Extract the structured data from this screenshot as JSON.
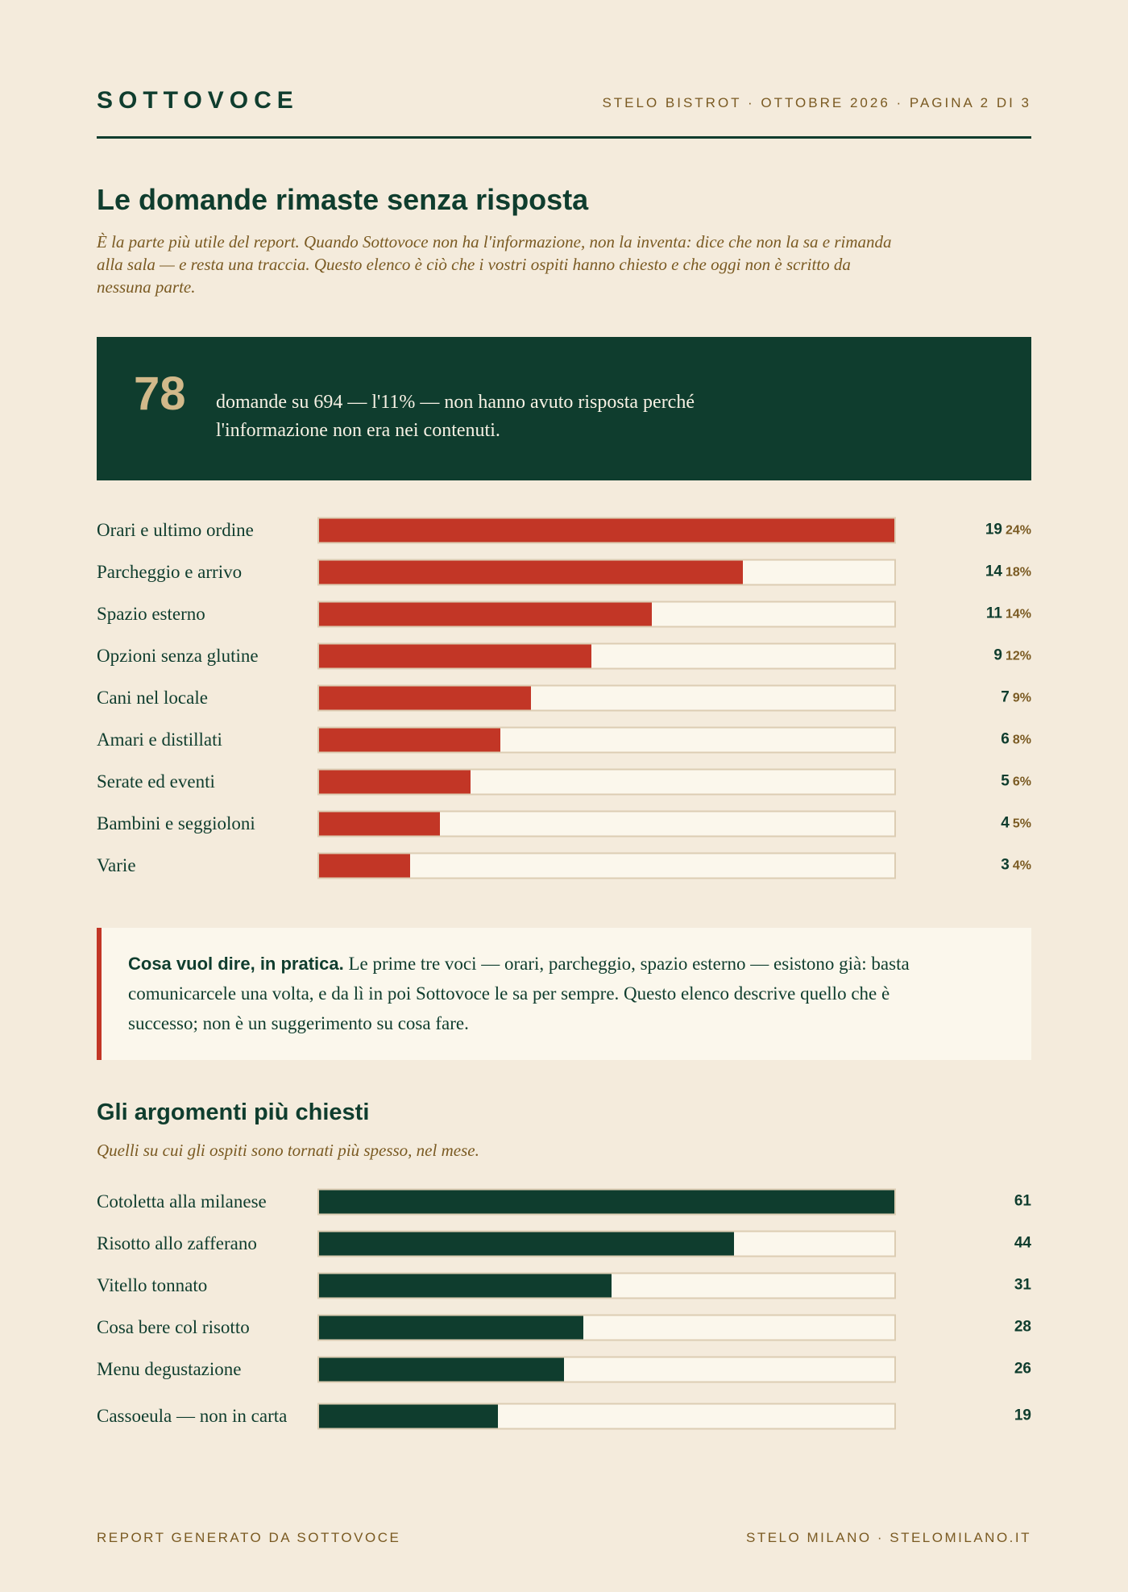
{
  "header": {
    "brand": "SOTTOVOCE",
    "meta": "STELO BISTROT · OTTOBRE 2026 · PAGINA 2 DI 3"
  },
  "section_unanswered": {
    "title": "Le domande rimaste senza risposta",
    "intro": "È la parte più utile del report. Quando Sottovoce non ha l'informazione, non la inventa: dice che non la sa e rimanda alla sala — e resta una traccia. Questo elenco è ciò che i vostri ospiti hanno chiesto e che oggi non è scritto da nessuna parte.",
    "stat": {
      "number": "78",
      "text": "domande su 694 — l'11% — non hanno avuto risposta perché l'informazione non era nei contenuti."
    },
    "items": [
      {
        "label": "Orari e ultimo ordine",
        "count": "19",
        "percent": "24%",
        "value": 19
      },
      {
        "label": "Parcheggio e arrivo",
        "count": "14",
        "percent": "18%",
        "value": 14
      },
      {
        "label": "Spazio esterno",
        "count": "11",
        "percent": "14%",
        "value": 11
      },
      {
        "label": "Opzioni senza glutine",
        "count": "9",
        "percent": "12%",
        "value": 9
      },
      {
        "label": "Cani nel locale",
        "count": "7",
        "percent": "9%",
        "value": 7
      },
      {
        "label": "Amari e distillati",
        "count": "6",
        "percent": "8%",
        "value": 6
      },
      {
        "label": "Serate ed eventi",
        "count": "5",
        "percent": "6%",
        "value": 5
      },
      {
        "label": "Bambini e seggioloni",
        "count": "4",
        "percent": "5%",
        "value": 4
      },
      {
        "label": "Varie",
        "count": "3",
        "percent": "4%",
        "value": 3
      }
    ],
    "scale_max": 19
  },
  "callout": {
    "lead": "Cosa vuol dire, in pratica.",
    "text": " Le prime tre voci — orari, parcheggio, spazio esterno — esistono già: basta comunicarcele una volta, e da lì in poi Sottovoce le sa per sempre. Questo elenco descrive quello che è successo; non è un suggerimento su cosa fare."
  },
  "section_topics": {
    "title": "Gli argomenti più chiesti",
    "intro": "Quelli su cui gli ospiti sono tornati più spesso, nel mese.",
    "items": [
      {
        "label": "Cotoletta alla milanese",
        "count": "61",
        "value": 61
      },
      {
        "label": "Risotto allo zafferano",
        "count": "44",
        "value": 44
      },
      {
        "label": "Vitello tonnato",
        "count": "31",
        "value": 31
      },
      {
        "label": "Cosa bere col risotto",
        "count": "28",
        "value": 28
      },
      {
        "label": "Menu degustazione",
        "count": "26",
        "value": 26
      },
      {
        "label": "Cassoeula — non in carta",
        "count": "19",
        "value": 19
      }
    ],
    "scale_max": 61
  },
  "footer": {
    "left": "REPORT GENERATO DA SOTTOVOCE",
    "right": "STELO MILANO · STELOMILANO.IT"
  },
  "colors": {
    "background": "#f4ebdc",
    "primary_green": "#0f3d2e",
    "accent_red": "#c23626",
    "muted_brown": "#7a5a22",
    "stat_gold": "#d2b98a"
  }
}
